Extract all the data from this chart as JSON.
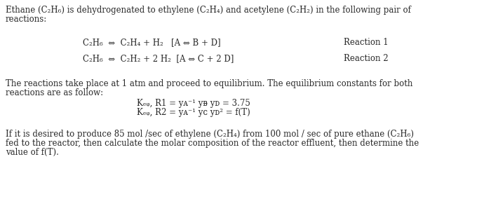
{
  "bg_color": "#ffffff",
  "text_color": "#2a2a2a",
  "font_family": "DejaVu Serif",
  "font_size": 8.5,
  "line1": "Ethane (C₂H₆) is dehydrogenated to ethylene (C₂H₄) and acetylene (C₂H₂) in the following pair of",
  "line2": "reactions:",
  "rxn1": "C₂H₆  ⇔  C₂H₄ + H₂   [A ⇔ B + D]",
  "rxn1_label": "Reaction 1",
  "rxn2": "C₂H₆  ⇔  C₂H₂ + 2 H₂  [A ⇔ C + 2 D]",
  "rxn2_label": "Reaction 2",
  "eq_line1": "The reactions take place at 1 atm and proceed to equilibrium. The equilibrium constants for both",
  "eq_line2": "reactions are as follow:",
  "keq1": "Kₑᵩ, R1 = yᴀ⁻¹ yᴃ yᴅ = 3.75",
  "keq2": "Kₑᵩ, R2 = yᴀ⁻¹ yᴄ yᴅ² = f(T)",
  "last1": "If it is desired to produce 85 mol /sec of ethylene (C₂H₄) from 100 mol / sec of pure ethane (C₂H₆)",
  "last2": "fed to the reactor, then calculate the molar composition of the reactor effluent, then determine the",
  "last3": "value of f(T)."
}
